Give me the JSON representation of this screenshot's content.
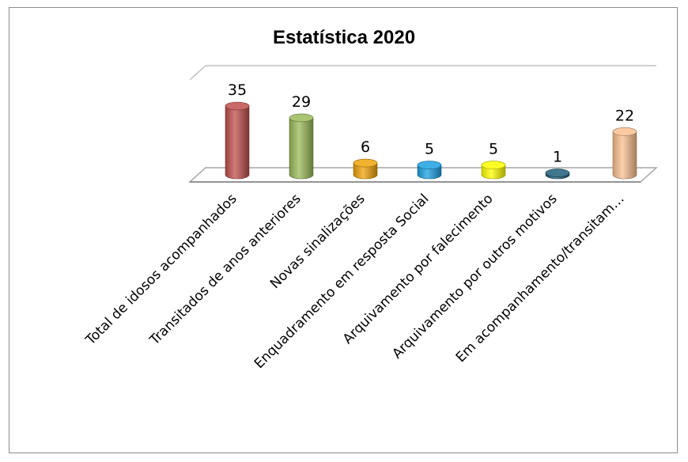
{
  "chart_data": {
    "type": "bar",
    "title": "Estatística 2020",
    "categories": [
      "Total de idosos acompanhados",
      "Transitados de anos anteriores",
      "Novas sinalizações",
      "Enquadramento em resposta Social",
      "Arquivamento por falecimento",
      "Arquivamento por outros motivos",
      "Em acompanhamento/transitam…"
    ],
    "values": [
      35,
      29,
      6,
      5,
      5,
      1,
      22
    ],
    "data_labels": [
      "35",
      "29",
      "6",
      "5",
      "5",
      "1",
      "22"
    ],
    "colors": [
      "#c0504d",
      "#9bbb59",
      "#f0a30a",
      "#1ba1e2",
      "#ffff00",
      "#1f5f7a",
      "#fac090"
    ],
    "ylim": [
      0,
      35
    ],
    "grid": false,
    "legend": "none",
    "style": "3d-cylinder"
  }
}
